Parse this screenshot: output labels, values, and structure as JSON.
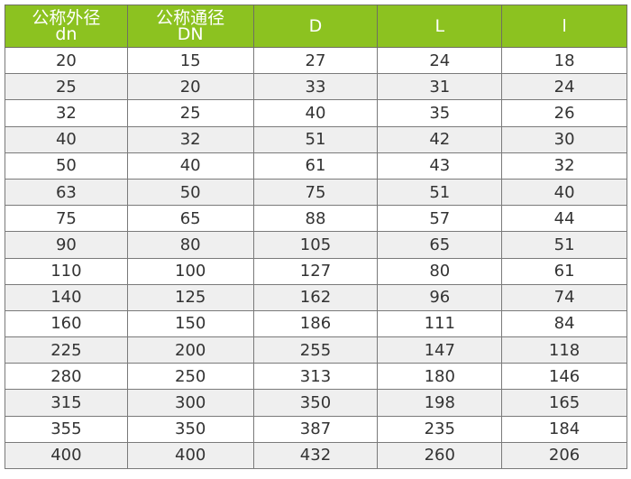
{
  "header_color": "#8cc220",
  "columns": [
    {
      "title": "公称外径",
      "sub": "dn"
    },
    {
      "title": "公称通径",
      "sub": "DN"
    },
    {
      "title": "D",
      "sub": ""
    },
    {
      "title": "L",
      "sub": ""
    },
    {
      "title": "l",
      "sub": ""
    }
  ],
  "rows": [
    [
      "20",
      "15",
      "27",
      "24",
      "18"
    ],
    [
      "25",
      "20",
      "33",
      "31",
      "24"
    ],
    [
      "32",
      "25",
      "40",
      "35",
      "26"
    ],
    [
      "40",
      "32",
      "51",
      "42",
      "30"
    ],
    [
      "50",
      "40",
      "61",
      "43",
      "32"
    ],
    [
      "63",
      "50",
      "75",
      "51",
      "40"
    ],
    [
      "75",
      "65",
      "88",
      "57",
      "44"
    ],
    [
      "90",
      "80",
      "105",
      "65",
      "51"
    ],
    [
      "110",
      "100",
      "127",
      "80",
      "61"
    ],
    [
      "140",
      "125",
      "162",
      "96",
      "74"
    ],
    [
      "160",
      "150",
      "186",
      "111",
      "84"
    ],
    [
      "225",
      "200",
      "255",
      "147",
      "118"
    ],
    [
      "280",
      "250",
      "313",
      "180",
      "146"
    ],
    [
      "315",
      "300",
      "350",
      "198",
      "165"
    ],
    [
      "355",
      "350",
      "387",
      "235",
      "184"
    ],
    [
      "400",
      "400",
      "432",
      "260",
      "206"
    ]
  ]
}
